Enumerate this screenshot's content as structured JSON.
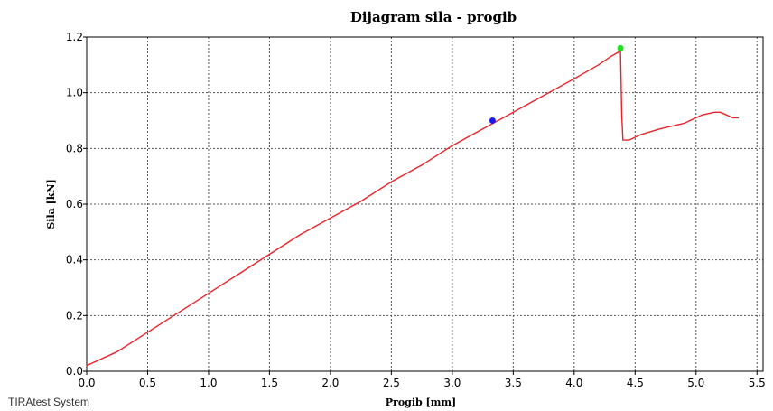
{
  "footer": {
    "brand": "TIRAtest System"
  },
  "chart_data": {
    "type": "line",
    "title": "Dijagram sila - progib",
    "xlabel": "Progib [mm]",
    "ylabel": "Sila [kN]",
    "xlim": [
      0.0,
      5.55
    ],
    "ylim": [
      0.0,
      1.2
    ],
    "xticks": [
      "0.0",
      "0.5",
      "1.0",
      "1.5",
      "2.0",
      "2.5",
      "3.0",
      "3.5",
      "4.0",
      "4.5",
      "5.0",
      "5.5"
    ],
    "yticks": [
      "0.0",
      "0.2",
      "0.4",
      "0.6",
      "0.8",
      "1.0",
      "1.2"
    ],
    "grid": true,
    "series": [
      {
        "color": "#e8242a",
        "x": [
          0.0,
          0.25,
          0.5,
          0.75,
          1.0,
          1.25,
          1.5,
          1.75,
          2.0,
          2.25,
          2.5,
          2.75,
          3.0,
          3.25,
          3.5,
          3.75,
          4.0,
          4.2,
          4.3,
          4.38,
          4.39,
          4.4,
          4.45,
          4.55,
          4.7,
          4.9,
          5.05,
          5.15,
          5.2,
          5.25,
          5.3,
          5.35
        ],
        "y": [
          0.02,
          0.07,
          0.14,
          0.21,
          0.28,
          0.35,
          0.42,
          0.49,
          0.55,
          0.61,
          0.68,
          0.74,
          0.81,
          0.87,
          0.93,
          0.99,
          1.05,
          1.1,
          1.13,
          1.15,
          0.92,
          0.83,
          0.83,
          0.85,
          0.87,
          0.89,
          0.92,
          0.93,
          0.93,
          0.92,
          0.91,
          0.91
        ]
      }
    ],
    "markers": [
      {
        "x": 3.33,
        "y": 0.9,
        "color": "#1a1aee"
      },
      {
        "x": 4.38,
        "y": 1.16,
        "color": "#22dd22"
      }
    ]
  }
}
